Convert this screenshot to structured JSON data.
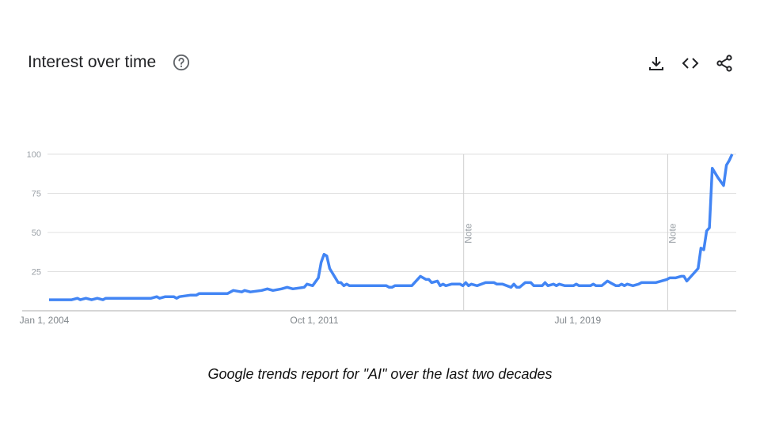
{
  "header": {
    "title": "Interest over time",
    "icons": [
      "help-circle-icon",
      "download-icon",
      "embed-code-icon",
      "share-icon"
    ]
  },
  "caption": "Google trends report for \"AI\" over the last two decades",
  "chart_data": {
    "type": "line",
    "title": "Interest over time",
    "xlabel": "",
    "ylabel": "",
    "ylim": [
      0,
      100
    ],
    "yticks": [
      100,
      75,
      50,
      25
    ],
    "xtick_labels": [
      {
        "date": "2004-01",
        "label": "Jan 1, 2004"
      },
      {
        "date": "2011-10",
        "label": "Oct 1, 2011"
      },
      {
        "date": "2019-07",
        "label": "Jul 1, 2019"
      }
    ],
    "xlim": [
      "2004-01",
      "2024-02"
    ],
    "grid": true,
    "line_color": "#4285f4",
    "notes": [
      {
        "date": "2016-03",
        "label": "Note"
      },
      {
        "date": "2022-03",
        "label": "Note"
      }
    ],
    "series": [
      {
        "points": [
          [
            "2004-01",
            7
          ],
          [
            "2004-09",
            7
          ],
          [
            "2004-11",
            8
          ],
          [
            "2004-12",
            7
          ],
          [
            "2005-02",
            8
          ],
          [
            "2005-04",
            7
          ],
          [
            "2005-06",
            8
          ],
          [
            "2005-08",
            7
          ],
          [
            "2005-09",
            8
          ],
          [
            "2007-01",
            8
          ],
          [
            "2007-03",
            9
          ],
          [
            "2007-04",
            8
          ],
          [
            "2007-06",
            9
          ],
          [
            "2007-09",
            9
          ],
          [
            "2007-10",
            8
          ],
          [
            "2007-11",
            9
          ],
          [
            "2008-03",
            10
          ],
          [
            "2008-05",
            10
          ],
          [
            "2008-06",
            11
          ],
          [
            "2008-09",
            11
          ],
          [
            "2009-04",
            11
          ],
          [
            "2009-06",
            13
          ],
          [
            "2009-09",
            12
          ],
          [
            "2009-10",
            13
          ],
          [
            "2009-12",
            12
          ],
          [
            "2010-04",
            13
          ],
          [
            "2010-06",
            14
          ],
          [
            "2010-08",
            13
          ],
          [
            "2010-11",
            14
          ],
          [
            "2011-01",
            15
          ],
          [
            "2011-03",
            14
          ],
          [
            "2011-07",
            15
          ],
          [
            "2011-08",
            17
          ],
          [
            "2011-10",
            16
          ],
          [
            "2011-12",
            21
          ],
          [
            "2012-01",
            31
          ],
          [
            "2012-02",
            36
          ],
          [
            "2012-03",
            35
          ],
          [
            "2012-04",
            27
          ],
          [
            "2012-07",
            18
          ],
          [
            "2012-08",
            18
          ],
          [
            "2012-09",
            16
          ],
          [
            "2012-10",
            17
          ],
          [
            "2012-11",
            16
          ],
          [
            "2013-12",
            16
          ],
          [
            "2014-01",
            15
          ],
          [
            "2014-02",
            15
          ],
          [
            "2014-03",
            16
          ],
          [
            "2014-09",
            16
          ],
          [
            "2014-12",
            22
          ],
          [
            "2015-02",
            20
          ],
          [
            "2015-03",
            20
          ],
          [
            "2015-04",
            18
          ],
          [
            "2015-06",
            19
          ],
          [
            "2015-07",
            16
          ],
          [
            "2015-08",
            17
          ],
          [
            "2015-09",
            16
          ],
          [
            "2015-11",
            17
          ],
          [
            "2016-02",
            17
          ],
          [
            "2016-03",
            16
          ],
          [
            "2016-04",
            18
          ],
          [
            "2016-05",
            16
          ],
          [
            "2016-06",
            17
          ],
          [
            "2016-08",
            16
          ],
          [
            "2016-11",
            18
          ],
          [
            "2017-02",
            18
          ],
          [
            "2017-03",
            17
          ],
          [
            "2017-05",
            17
          ],
          [
            "2017-08",
            15
          ],
          [
            "2017-09",
            17
          ],
          [
            "2017-10",
            15
          ],
          [
            "2017-11",
            15
          ],
          [
            "2018-01",
            18
          ],
          [
            "2018-03",
            18
          ],
          [
            "2018-04",
            16
          ],
          [
            "2018-07",
            16
          ],
          [
            "2018-08",
            18
          ],
          [
            "2018-09",
            16
          ],
          [
            "2018-11",
            17
          ],
          [
            "2018-12",
            16
          ],
          [
            "2019-01",
            17
          ],
          [
            "2019-03",
            16
          ],
          [
            "2019-06",
            16
          ],
          [
            "2019-07",
            17
          ],
          [
            "2019-08",
            16
          ],
          [
            "2019-12",
            16
          ],
          [
            "2020-01",
            17
          ],
          [
            "2020-02",
            16
          ],
          [
            "2020-04",
            16
          ],
          [
            "2020-06",
            19
          ],
          [
            "2020-07",
            18
          ],
          [
            "2020-09",
            16
          ],
          [
            "2020-10",
            16
          ],
          [
            "2020-11",
            17
          ],
          [
            "2020-12",
            16
          ],
          [
            "2021-01",
            17
          ],
          [
            "2021-03",
            16
          ],
          [
            "2021-05",
            17
          ],
          [
            "2021-06",
            18
          ],
          [
            "2021-11",
            18
          ],
          [
            "2022-01",
            19
          ],
          [
            "2022-03",
            20
          ],
          [
            "2022-04",
            21
          ],
          [
            "2022-06",
            21
          ],
          [
            "2022-08",
            22
          ],
          [
            "2022-09",
            22
          ],
          [
            "2022-10",
            19
          ],
          [
            "2022-12",
            23
          ],
          [
            "2023-02",
            27
          ],
          [
            "2023-03",
            40
          ],
          [
            "2023-04",
            39
          ],
          [
            "2023-05",
            51
          ],
          [
            "2023-06",
            53
          ],
          [
            "2023-07",
            91
          ],
          [
            "2023-09",
            85
          ],
          [
            "2023-11",
            80
          ],
          [
            "2023-12",
            93
          ],
          [
            "2024-01",
            96
          ],
          [
            "2024-02",
            100
          ]
        ]
      }
    ]
  }
}
